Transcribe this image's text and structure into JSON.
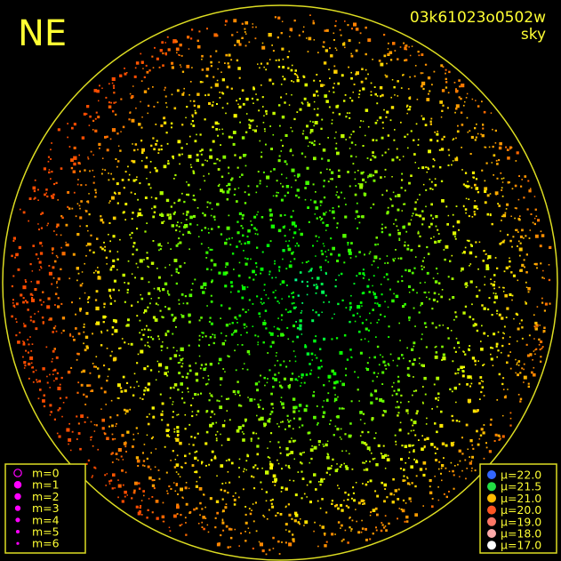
{
  "header": {
    "corner": "NE",
    "frame_id": "03k61023o0502w",
    "subtitle": "sky"
  },
  "magnitude_legend": {
    "color": "#ff00ff",
    "items": [
      "m=0",
      "m=1",
      "m=2",
      "m=3",
      "m=4",
      "m=5",
      "m=6"
    ]
  },
  "brightness_legend": {
    "items": [
      {
        "label": "μ=22.0",
        "color": "#3366ff"
      },
      {
        "label": "μ=21.5",
        "color": "#22dd44"
      },
      {
        "label": "μ=21.0",
        "color": "#ffbb00"
      },
      {
        "label": "μ=20.0",
        "color": "#ff5522"
      },
      {
        "label": "μ=19.0",
        "color": "#ff7766"
      },
      {
        "label": "μ=18.0",
        "color": "#ffaaaa"
      },
      {
        "label": "μ=17.0",
        "color": "#ffffff"
      }
    ]
  }
}
